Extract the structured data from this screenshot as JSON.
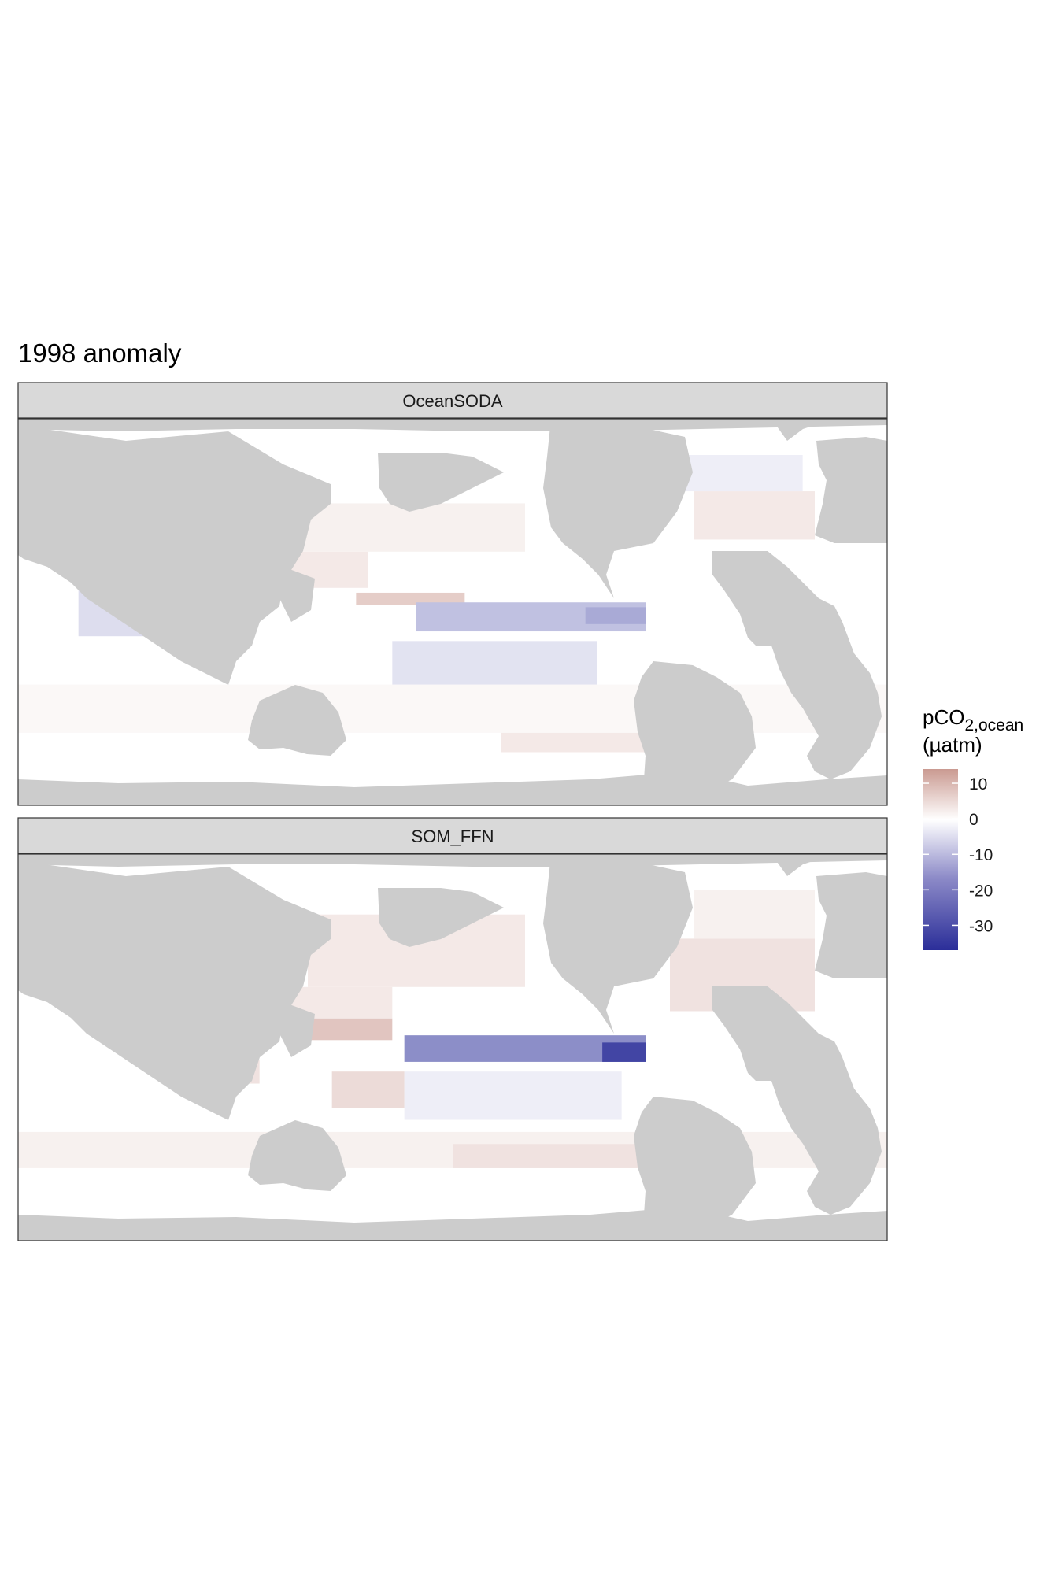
{
  "chart_data": {
    "type": "heatmap",
    "title": "1998 anomaly",
    "xlabel": "",
    "ylabel": "",
    "x_range": [
      20,
      380
    ],
    "y_range": [
      -80,
      80
    ],
    "grid": false,
    "legend_placement": "right",
    "colors": {
      "land": "#cccccc",
      "ocean_zero": "#ffffff",
      "positive": "#ca9a91",
      "negative": "#2b2e99",
      "strip_bg": "#d9d9d9",
      "panel_border": "#333333"
    },
    "legend": {
      "title_main": "pCO",
      "title_sub": "2,ocean",
      "title_unit": "(µatm)",
      "ticks": [
        "10",
        "0",
        "-10",
        "-20",
        "-30"
      ],
      "tick_values": [
        10,
        0,
        -10,
        -20,
        -30
      ],
      "limits": [
        -37,
        14
      ]
    },
    "panels": [
      {
        "label": "OceanSODA",
        "anomalies": [
          {
            "lon_min": 160,
            "lon_max": 205,
            "lat_min": 3,
            "lat_max": 8,
            "value": 7
          },
          {
            "lon_min": 125,
            "lon_max": 165,
            "lat_min": 10,
            "lat_max": 25,
            "value": 3
          },
          {
            "lon_min": 125,
            "lon_max": 230,
            "lat_min": 25,
            "lat_max": 45,
            "value": 2
          },
          {
            "lon_min": 185,
            "lon_max": 280,
            "lat_min": -8,
            "lat_max": 4,
            "value": -11
          },
          {
            "lon_min": 255,
            "lon_max": 280,
            "lat_min": -5,
            "lat_max": 2,
            "value": -15
          },
          {
            "lon_min": 175,
            "lon_max": 260,
            "lat_min": -35,
            "lat_max": -12,
            "value": -5
          },
          {
            "lon_min": 45,
            "lon_max": 85,
            "lat_min": -10,
            "lat_max": 15,
            "value": -6
          },
          {
            "lon_min": 300,
            "lon_max": 350,
            "lat_min": 30,
            "lat_max": 50,
            "value": 3
          },
          {
            "lon_min": 290,
            "lon_max": 345,
            "lat_min": 50,
            "lat_max": 65,
            "value": -3
          },
          {
            "lon_min": 220,
            "lon_max": 300,
            "lat_min": -58,
            "lat_max": -48,
            "value": 3
          },
          {
            "lon_min": 20,
            "lon_max": 380,
            "lat_min": -50,
            "lat_max": -30,
            "value": 1
          }
        ]
      },
      {
        "label": "SOM_FFN",
        "anomalies": [
          {
            "lon_min": 130,
            "lon_max": 175,
            "lat_min": 3,
            "lat_max": 12,
            "value": 8
          },
          {
            "lon_min": 125,
            "lon_max": 175,
            "lat_min": 12,
            "lat_max": 25,
            "value": 3
          },
          {
            "lon_min": 140,
            "lon_max": 230,
            "lat_min": 25,
            "lat_max": 55,
            "value": 3
          },
          {
            "lon_min": 180,
            "lon_max": 280,
            "lat_min": -6,
            "lat_max": 5,
            "value": -20
          },
          {
            "lon_min": 262,
            "lon_max": 280,
            "lat_min": -6,
            "lat_max": 2,
            "value": -33
          },
          {
            "lon_min": 150,
            "lon_max": 180,
            "lat_min": -25,
            "lat_max": -10,
            "value": 5
          },
          {
            "lon_min": 180,
            "lon_max": 270,
            "lat_min": -30,
            "lat_max": -10,
            "value": -3
          },
          {
            "lon_min": 80,
            "lon_max": 120,
            "lat_min": -15,
            "lat_max": -5,
            "value": 4
          },
          {
            "lon_min": 290,
            "lon_max": 350,
            "lat_min": 15,
            "lat_max": 45,
            "value": 4
          },
          {
            "lon_min": 300,
            "lon_max": 350,
            "lat_min": 45,
            "lat_max": 65,
            "value": 2
          },
          {
            "lon_min": 20,
            "lon_max": 380,
            "lat_min": -50,
            "lat_max": -35,
            "value": 2
          },
          {
            "lon_min": 200,
            "lon_max": 280,
            "lat_min": -50,
            "lat_max": -40,
            "value": 4
          }
        ]
      }
    ]
  }
}
